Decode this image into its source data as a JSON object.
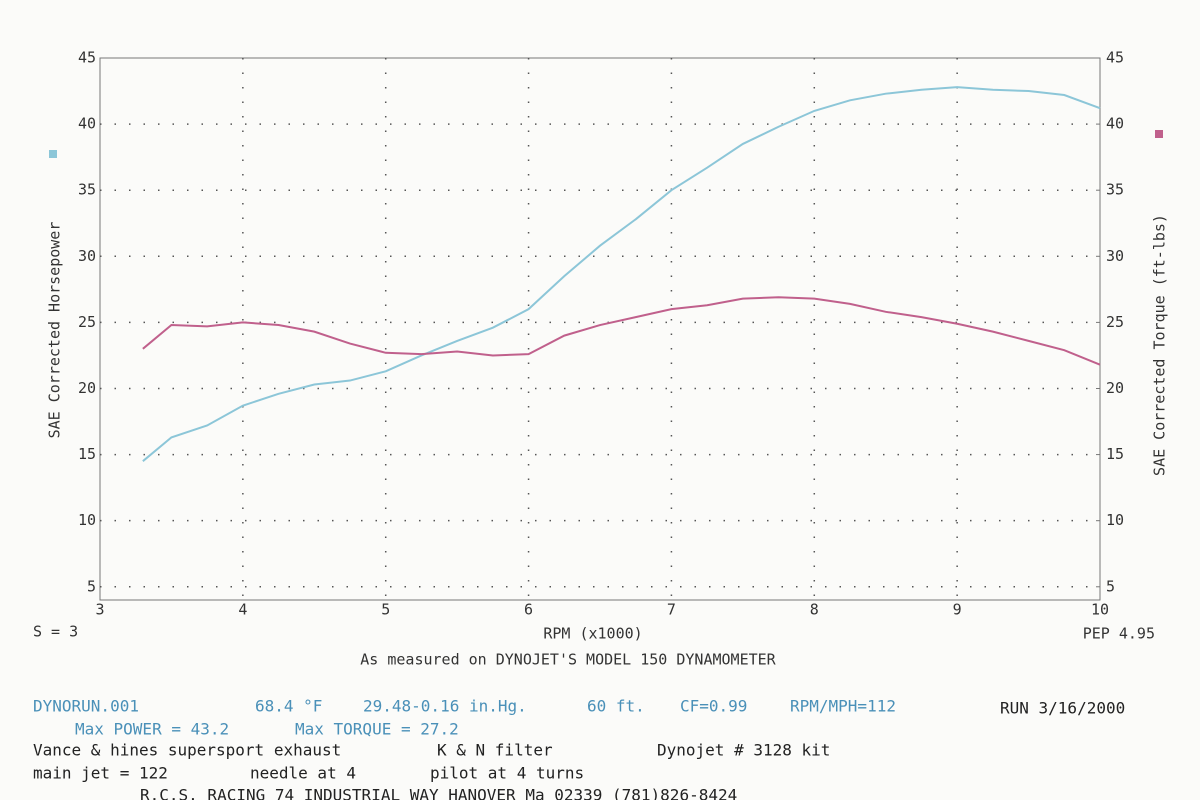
{
  "chart_data": {
    "type": "line",
    "x_label": "RPM (x1000)",
    "y_label": "SAE Corrected Horsepower",
    "y2_label": "SAE Corrected Torque (ft-lbs)",
    "subtitle": "As measured on DYNOJET'S MODEL 150 DYNAMOMETER",
    "left_note": "S = 3",
    "right_note": "PEP 4.95",
    "x": [
      3.3,
      3.5,
      3.75,
      4.0,
      4.25,
      4.5,
      4.75,
      5.0,
      5.25,
      5.5,
      5.75,
      6.0,
      6.25,
      6.5,
      6.75,
      7.0,
      7.25,
      7.5,
      7.75,
      8.0,
      8.25,
      8.5,
      8.75,
      9.0,
      9.25,
      9.5,
      9.75,
      10.0
    ],
    "series": [
      {
        "color": "#8cc6d8",
        "values": [
          14.5,
          16.3,
          17.2,
          18.7,
          19.6,
          20.3,
          20.6,
          21.3,
          22.5,
          23.6,
          24.6,
          26.0,
          28.5,
          30.8,
          32.8,
          35.0,
          36.7,
          38.5,
          39.8,
          41.0,
          41.8,
          42.3,
          42.6,
          42.8,
          42.6,
          42.5,
          42.2,
          41.2
        ]
      },
      {
        "color": "#c0608c",
        "axis": "y2",
        "values": [
          23.0,
          24.8,
          24.7,
          25.0,
          24.8,
          24.3,
          23.4,
          22.7,
          22.6,
          22.8,
          22.5,
          22.6,
          24.0,
          24.8,
          25.4,
          26.0,
          26.3,
          26.8,
          26.9,
          26.8,
          26.4,
          25.8,
          25.4,
          24.9,
          24.3,
          23.6,
          22.9,
          21.8
        ]
      }
    ],
    "xlim": [
      3,
      10
    ],
    "xticks": [
      3,
      4,
      5,
      6,
      7,
      8,
      9,
      10
    ],
    "ylim": [
      4,
      45
    ],
    "yticks": [
      5,
      10,
      15,
      20,
      25,
      30,
      35,
      40,
      45
    ],
    "y2lim": [
      4,
      45
    ],
    "y2ticks": [
      5,
      10,
      15,
      20,
      25,
      30,
      35,
      40,
      45
    ],
    "grid": true
  },
  "footer": {
    "line1": [
      "DYNORUN.001",
      "68.4 °F",
      "29.48-0.16 in.Hg.",
      "60 ft.",
      "CF=0.99",
      "RPM/MPH=112",
      "RUN 3/16/2000"
    ],
    "line2": [
      "Max POWER = 43.2",
      "Max TORQUE = 27.2"
    ],
    "line3": [
      "Vance & hines supersport exhaust",
      "K & N filter",
      "Dynojet # 3128 kit"
    ],
    "line4": [
      "main jet = 122",
      "needle at 4",
      "pilot at 4 turns"
    ],
    "line5": [
      "R.C.S. RACING   74 INDUSTRIAL WAY   HANOVER Ma 02339   (781)826-8424"
    ]
  }
}
